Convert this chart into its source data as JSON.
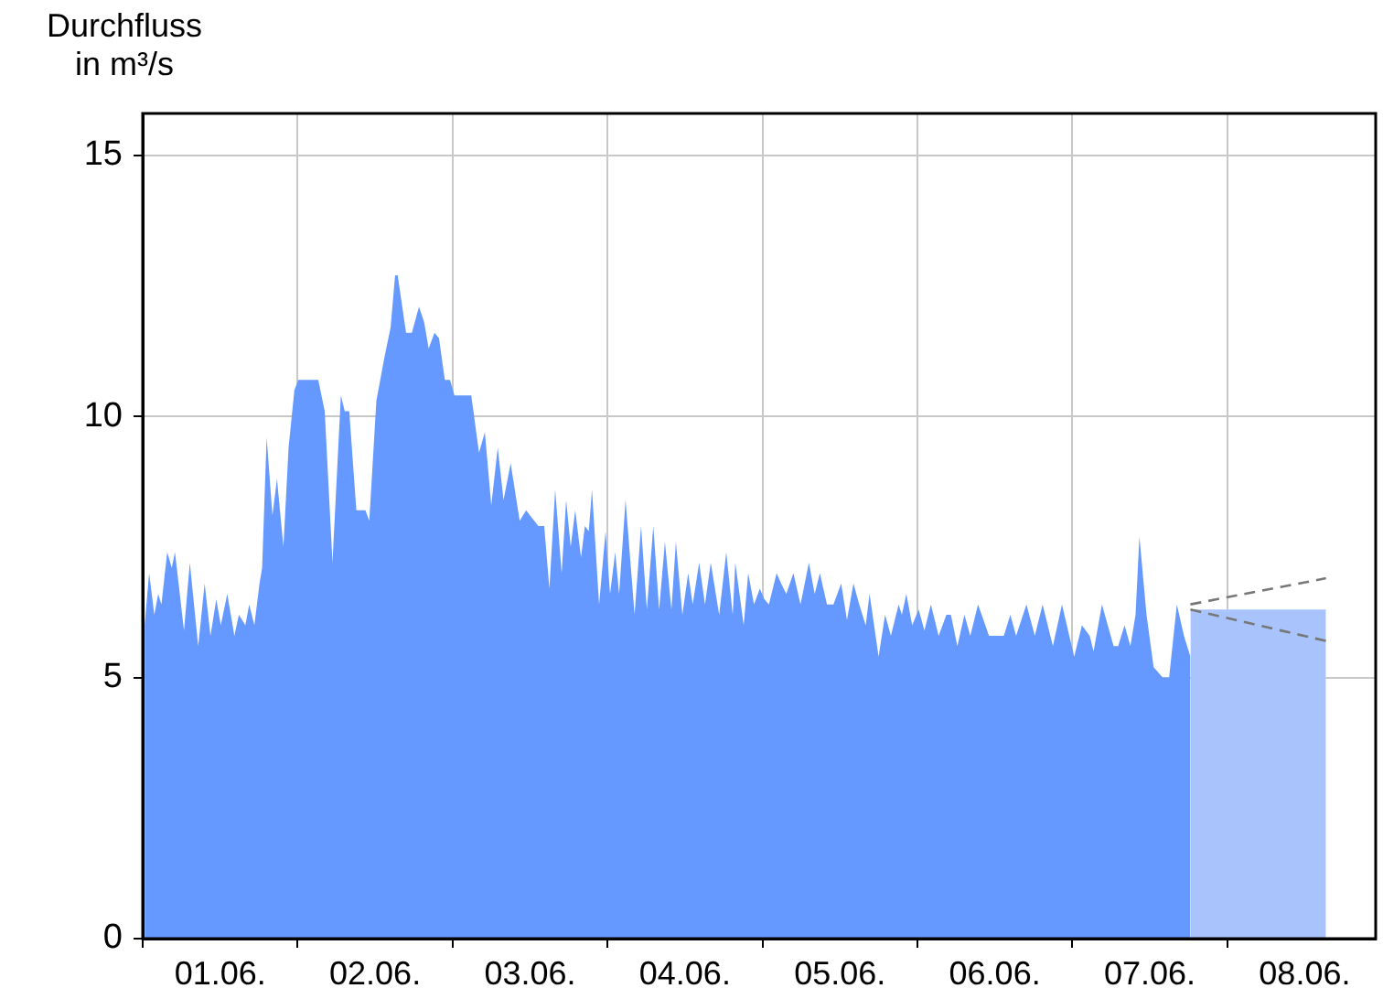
{
  "chart_data": {
    "type": "area",
    "ylabel": "Durchfluss in m³/s",
    "xlim": [
      "--06-01",
      "--06-08T23:00"
    ],
    "xticks": [
      {
        "value": "--06-01",
        "label": null
      },
      {
        "value": "--06-01T12:00",
        "label": "01.06."
      },
      {
        "value": "--06-02",
        "label": null
      },
      {
        "value": "--06-02T12:00",
        "label": "02.06."
      },
      {
        "value": "--06-03",
        "label": null
      },
      {
        "value": "--06-03T12:00",
        "label": "03.06."
      },
      {
        "value": "--06-04",
        "label": null
      },
      {
        "value": "--06-04T12:00",
        "label": "04.06."
      },
      {
        "value": "--06-05",
        "label": null
      },
      {
        "value": "--06-05T12:00",
        "label": "05.06."
      },
      {
        "value": "--06-06",
        "label": null
      },
      {
        "value": "--06-06T12:00",
        "label": "06.06."
      },
      {
        "value": "--06-07",
        "label": null
      },
      {
        "value": "--06-07T12:00",
        "label": "07.06."
      },
      {
        "value": "--06-08",
        "label": null
      },
      {
        "value": "--06-08T12:00",
        "label": "08.06."
      }
    ],
    "ylim": [
      0,
      15.8
    ],
    "yticks": [
      0,
      5,
      10,
      15
    ],
    "grid": true,
    "legend": false,
    "marker": "none",
    "series": [
      {
        "color": "#6699ff",
        "x": [
          "--06-01T00:18",
          "--06-01T01:00",
          "--06-01T01:48",
          "--06-01T02:24",
          "--06-01T02:54",
          "--06-01T03:48",
          "--06-01T04:30",
          "--06-01T05:00",
          "--06-01T06:24",
          "--06-01T07:18",
          "--06-01T08:36",
          "--06-01T09:36",
          "--06-01T10:30",
          "--06-01T11:24",
          "--06-01T12:06",
          "--06-01T13:06",
          "--06-01T14:12",
          "--06-01T14:54",
          "--06-01T15:54",
          "--06-01T16:30",
          "--06-01T17:18",
          "--06-01T18:06",
          "--06-01T18:30",
          "--06-01T19:12",
          "--06-01T20:06",
          "--06-01T20:48",
          "--06-01T21:48",
          "--06-01T22:36",
          "--06-01T23:30",
          "--06-02T00:06",
          "--06-02T03:12",
          "--06-02T04:12",
          "--06-02T05:24",
          "--06-02T06:42",
          "--06-02T07:18",
          "--06-02T08:00",
          "--06-02T09:06",
          "--06-02T10:30",
          "--06-02T11:06",
          "--06-02T12:12",
          "--06-02T13:24",
          "--06-02T14:24",
          "--06-02T15:06",
          "--06-02T15:30",
          "--06-02T16:48",
          "--06-02T17:42",
          "--06-02T18:48",
          "--06-02T19:36",
          "--06-02T20:18",
          "--06-02T21:12",
          "--06-02T21:54",
          "--06-02T22:48",
          "--06-02T23:36",
          "--06-03T00:18",
          "--06-03T02:54",
          "--06-03T04:06",
          "--06-03T05:00",
          "--06-03T06:00",
          "--06-03T07:00",
          "--06-03T07:54",
          "--06-03T09:00",
          "--06-03T10:24",
          "--06-03T11:24",
          "--06-03T12:00",
          "--06-03T13:18",
          "--06-03T14:12",
          "--06-03T15:00",
          "--06-03T15:54",
          "--06-03T16:54",
          "--06-03T17:36",
          "--06-03T18:18",
          "--06-03T19:00",
          "--06-03T19:54",
          "--06-03T20:30",
          "--06-03T21:06",
          "--06-03T21:36",
          "--06-03T22:42",
          "--06-03T23:42",
          "--06-04T00:24",
          "--06-04T01:12",
          "--06-04T01:48",
          "--06-04T02:48",
          "--06-04T04:12",
          "--06-04T05:12",
          "--06-04T06:06",
          "--06-04T07:06",
          "--06-04T08:00",
          "--06-04T08:54",
          "--06-04T09:54",
          "--06-04T10:36",
          "--06-04T11:36",
          "--06-04T12:30",
          "--06-04T13:12",
          "--06-04T14:12",
          "--06-04T15:06",
          "--06-04T16:00",
          "--06-04T17:18",
          "--06-04T18:24",
          "--06-04T19:24",
          "--06-04T19:48",
          "--06-04T21:06",
          "--06-04T21:48",
          "--06-04T22:42",
          "--06-04T23:36",
          "--06-05T00:18",
          "--06-05T01:00",
          "--06-05T02:12",
          "--06-05T02:54",
          "--06-05T03:42",
          "--06-05T04:48",
          "--06-05T05:54",
          "--06-05T07:12",
          "--06-05T08:06",
          "--06-05T08:54",
          "--06-05T10:00",
          "--06-05T11:00",
          "--06-05T12:12",
          "--06-05T13:06",
          "--06-05T14:06",
          "--06-05T15:00",
          "--06-05T16:00",
          "--06-05T16:36",
          "--06-05T18:00",
          "--06-05T19:00",
          "--06-05T19:54",
          "--06-05T21:06",
          "--06-05T21:36",
          "--06-05T22:18",
          "--06-05T23:12",
          "--06-06T00:12",
          "--06-06T01:06",
          "--06-06T02:06",
          "--06-06T03:18",
          "--06-06T04:30",
          "--06-06T05:12",
          "--06-06T06:12",
          "--06-06T07:18",
          "--06-06T08:12",
          "--06-06T09:24",
          "--06-06T11:06",
          "--06-06T13:24",
          "--06-06T14:24",
          "--06-06T15:18",
          "--06-06T16:54",
          "--06-06T18:12",
          "--06-06T19:24",
          "--06-06T21:00",
          "--06-06T22:24",
          "--06-07T00:18",
          "--06-07T01:30",
          "--06-07T02:42",
          "--06-07T03:18",
          "--06-07T04:36",
          "--06-07T06:24",
          "--06-07T07:06",
          "--06-07T08:06",
          "--06-07T09:00",
          "--06-07T09:48",
          "--06-07T10:24",
          "--06-07T11:30",
          "--06-07T12:36",
          "--06-07T14:00",
          "--06-07T15:00",
          "--06-07T16:12",
          "--06-07T17:18",
          "--06-07T18:18"
        ],
        "values": [
          6.0,
          7.0,
          6.2,
          6.6,
          6.4,
          7.4,
          7.1,
          7.4,
          5.9,
          7.2,
          5.6,
          6.8,
          5.8,
          6.5,
          6.0,
          6.6,
          5.8,
          6.2,
          6.0,
          6.4,
          6.0,
          6.8,
          7.1,
          9.6,
          8.1,
          8.8,
          7.5,
          9.4,
          10.5,
          10.7,
          10.7,
          10.1,
          7.2,
          10.4,
          10.1,
          10.1,
          8.2,
          8.2,
          8.0,
          10.3,
          11.1,
          11.7,
          12.7,
          12.7,
          11.6,
          11.6,
          12.1,
          11.8,
          11.3,
          11.6,
          11.5,
          10.7,
          10.7,
          10.4,
          10.4,
          9.3,
          9.7,
          8.3,
          9.4,
          8.4,
          9.1,
          8.0,
          8.2,
          8.1,
          7.9,
          7.9,
          6.7,
          8.6,
          7.0,
          8.4,
          7.5,
          8.2,
          7.3,
          7.9,
          7.8,
          8.6,
          6.4,
          7.8,
          6.6,
          7.4,
          6.6,
          8.4,
          6.2,
          7.9,
          6.3,
          7.9,
          6.3,
          7.6,
          6.3,
          7.6,
          6.2,
          7.0,
          6.4,
          7.2,
          6.4,
          7.2,
          6.2,
          7.4,
          6.2,
          7.2,
          6.0,
          7.0,
          6.4,
          6.7,
          6.5,
          6.4,
          7.0,
          6.8,
          6.6,
          7.0,
          6.4,
          7.2,
          6.6,
          7.0,
          6.4,
          6.4,
          6.8,
          6.1,
          6.8,
          6.4,
          6.0,
          6.6,
          5.4,
          6.2,
          5.8,
          6.4,
          6.2,
          6.6,
          6.0,
          6.3,
          5.9,
          6.4,
          5.8,
          6.2,
          6.2,
          5.6,
          6.2,
          5.8,
          6.4,
          5.8,
          5.8,
          6.2,
          5.8,
          6.4,
          5.8,
          6.4,
          5.6,
          6.4,
          5.4,
          6.0,
          5.8,
          5.5,
          6.4,
          5.6,
          5.6,
          6.0,
          5.6,
          6.2,
          7.7,
          6.2,
          5.2,
          5.0,
          5.0,
          6.4,
          5.8,
          5.4
        ]
      },
      {
        "color": "#a9c4fc",
        "x": [
          "--06-07T18:18",
          "--06-08T15:18"
        ],
        "values": [
          6.3,
          6.3
        ]
      },
      {
        "type": "line",
        "color": "#777777",
        "line_style": "dashed",
        "x": [
          "--06-07T18:18",
          "--06-08T15:18"
        ],
        "values": [
          6.4,
          6.9
        ]
      },
      {
        "type": "line",
        "color": "#777777",
        "line_style": "dashed",
        "x": [
          "--06-07T18:18",
          "--06-08T15:18"
        ],
        "values": [
          6.3,
          5.7
        ]
      }
    ]
  }
}
